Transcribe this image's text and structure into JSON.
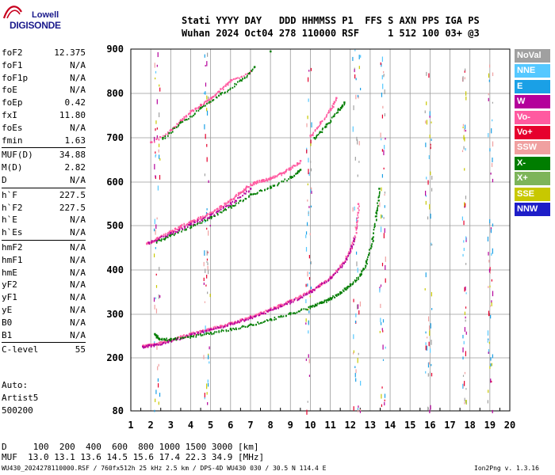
{
  "logo": {
    "line1": "Lowell",
    "line2": "DIGISONDE"
  },
  "header": {
    "row1": "Stati YYYY DAY   DDD HHMMSS P1  FFS S AXN PPS IGA PS",
    "row2": "Wuhan 2024 Oct04 278 110000 RSF     1 512 100 03+ @3"
  },
  "params": {
    "group1": [
      {
        "label": "foF2",
        "value": "12.375"
      },
      {
        "label": "foF1",
        "value": "N/A"
      },
      {
        "label": "foF1p",
        "value": "N/A"
      },
      {
        "label": "foE",
        "value": "N/A"
      },
      {
        "label": "foEp",
        "value": "0.42"
      },
      {
        "label": "fxI",
        "value": "11.80"
      },
      {
        "label": "foEs",
        "value": "N/A"
      },
      {
        "label": "fmin",
        "value": "1.63"
      }
    ],
    "group2": [
      {
        "label": "MUF(D)",
        "value": "34.88"
      },
      {
        "label": "M(D)",
        "value": "2.82"
      },
      {
        "label": "D",
        "value": "N/A"
      }
    ],
    "group3": [
      {
        "label": "h`F",
        "value": "227.5"
      },
      {
        "label": "h`F2",
        "value": "227.5"
      },
      {
        "label": "h`E",
        "value": "N/A"
      },
      {
        "label": "h`Es",
        "value": "N/A"
      }
    ],
    "group4": [
      {
        "label": "hmF2",
        "value": "N/A"
      },
      {
        "label": "hmF1",
        "value": "N/A"
      },
      {
        "label": "hmE",
        "value": "N/A"
      },
      {
        "label": "yF2",
        "value": "N/A"
      },
      {
        "label": "yF1",
        "value": "N/A"
      },
      {
        "label": "yE",
        "value": "N/A"
      },
      {
        "label": "B0",
        "value": "N/A"
      },
      {
        "label": "B1",
        "value": "N/A"
      }
    ],
    "group5": [
      {
        "label": "C-level",
        "value": "55"
      }
    ]
  },
  "autoscale": {
    "line1": "Auto:",
    "line2": "Artist5",
    "line3": "500200"
  },
  "legend": [
    {
      "label": "NoVal",
      "color": "#a0a0a0"
    },
    {
      "label": "NNE",
      "color": "#55c8ff"
    },
    {
      "label": "E",
      "color": "#1aa0e6"
    },
    {
      "label": "W",
      "color": "#b4009b"
    },
    {
      "label": "Vo-",
      "color": "#ff5aa0"
    },
    {
      "label": "Vo+",
      "color": "#e6002d"
    },
    {
      "label": "SSW",
      "color": "#f0a0a0"
    },
    {
      "label": "X-",
      "color": "#007d00"
    },
    {
      "label": "X+",
      "color": "#7db45a"
    },
    {
      "label": "SSE",
      "color": "#c8c800"
    },
    {
      "label": "NNW",
      "color": "#1e1ec8"
    }
  ],
  "footer": {
    "d_row": "D     100  200  400  600  800 1000 1500 3000 [km]",
    "muf_row": "MUF  13.0 13.1 13.6 14.5 15.6 17.4 22.3 34.9 [MHz]",
    "file_info": "WU430_2024278110000.RSF / 760fx512h 25 kHz 2.5 km / DPS-4D WU430 030 / 30.5 N 114.4 E",
    "version": "Ion2Png v. 1.3.16"
  },
  "chart_data": {
    "type": "scatter",
    "title": "",
    "xlabel": "",
    "ylabel": "",
    "xlim": [
      1,
      20
    ],
    "ylim": [
      80,
      900
    ],
    "x_ticks": [
      1,
      2,
      3,
      4,
      5,
      6,
      7,
      8,
      9,
      10,
      11,
      12,
      13,
      14,
      15,
      16,
      17,
      18,
      19,
      20
    ],
    "y_ticks": [
      80,
      200,
      300,
      400,
      500,
      600,
      700,
      800,
      900
    ],
    "grid": true,
    "series": [
      {
        "name": "Vo-",
        "color": "#ff5aa0",
        "points": [
          [
            1.6,
            228
          ],
          [
            2.0,
            231
          ],
          [
            2.5,
            236
          ],
          [
            3.0,
            243
          ],
          [
            3.5,
            250
          ],
          [
            4.0,
            256
          ],
          [
            4.5,
            262
          ],
          [
            5.0,
            268
          ],
          [
            5.5,
            274
          ],
          [
            6.0,
            281
          ],
          [
            6.5,
            288
          ],
          [
            7.0,
            296
          ],
          [
            7.5,
            304
          ],
          [
            8.0,
            313
          ],
          [
            8.5,
            322
          ],
          [
            9.0,
            332
          ],
          [
            9.5,
            342
          ],
          [
            10.0,
            354
          ],
          [
            10.5,
            368
          ],
          [
            11.0,
            385
          ],
          [
            11.5,
            410
          ],
          [
            12.0,
            445
          ],
          [
            12.3,
            495
          ],
          [
            12.4,
            550
          ]
        ]
      },
      {
        "name": "W",
        "color": "#b4009b",
        "points": [
          [
            1.6,
            226
          ],
          [
            2.2,
            231
          ],
          [
            3.0,
            241
          ],
          [
            4.0,
            254
          ],
          [
            5.0,
            266
          ],
          [
            6.0,
            279
          ],
          [
            7.0,
            294
          ],
          [
            8.0,
            311
          ],
          [
            9.0,
            330
          ],
          [
            10.0,
            352
          ],
          [
            11.0,
            383
          ],
          [
            11.8,
            425
          ],
          [
            12.2,
            470
          ]
        ]
      },
      {
        "name": "X-",
        "color": "#007d00",
        "points": [
          [
            2.2,
            255
          ],
          [
            2.4,
            244
          ],
          [
            3.0,
            244
          ],
          [
            4.0,
            250
          ],
          [
            5.0,
            258
          ],
          [
            6.0,
            267
          ],
          [
            7.0,
            277
          ],
          [
            8.0,
            289
          ],
          [
            9.0,
            303
          ],
          [
            10.0,
            318
          ],
          [
            10.5,
            327
          ],
          [
            11.0,
            337
          ],
          [
            11.5,
            350
          ],
          [
            12.0,
            368
          ],
          [
            12.5,
            390
          ],
          [
            12.8,
            420
          ],
          [
            13.1,
            470
          ],
          [
            13.3,
            530
          ],
          [
            13.45,
            585
          ]
        ]
      },
      {
        "name": "Vo- (2nd hop)",
        "color": "#ff5aa0",
        "points": [
          [
            1.8,
            460
          ],
          [
            2.3,
            472
          ],
          [
            3.0,
            488
          ],
          [
            3.5,
            500
          ],
          [
            4.0,
            510
          ],
          [
            4.5,
            520
          ],
          [
            5.0,
            530
          ],
          [
            5.5,
            545
          ],
          [
            6.0,
            560
          ],
          [
            6.4,
            575
          ],
          [
            6.8,
            590
          ],
          [
            7.2,
            600
          ],
          [
            7.6,
            605
          ],
          [
            8.0,
            610
          ],
          [
            8.5,
            620
          ],
          [
            9.0,
            632
          ],
          [
            9.5,
            648
          ]
        ]
      },
      {
        "name": "X- (2nd hop)",
        "color": "#007d00",
        "points": [
          [
            2.3,
            466
          ],
          [
            3.0,
            480
          ],
          [
            4.0,
            500
          ],
          [
            5.0,
            520
          ],
          [
            6.0,
            545
          ],
          [
            7.0,
            572
          ],
          [
            8.0,
            590
          ],
          [
            9.0,
            612
          ],
          [
            9.5,
            628
          ]
        ]
      },
      {
        "name": "W (2nd hop)",
        "color": "#b4009b",
        "points": [
          [
            1.9,
            462
          ],
          [
            3.0,
            484
          ],
          [
            4.0,
            505
          ],
          [
            5.0,
            525
          ],
          [
            6.0,
            552
          ],
          [
            7.0,
            585
          ]
        ]
      },
      {
        "name": "Vo- (3rd hop)",
        "color": "#ff5aa0",
        "points": [
          [
            2.0,
            690
          ],
          [
            3.0,
            718
          ],
          [
            3.5,
            740
          ],
          [
            4.0,
            760
          ],
          [
            4.5,
            775
          ],
          [
            5.0,
            790
          ],
          [
            5.5,
            810
          ],
          [
            6.0,
            830
          ],
          [
            7.0,
            850
          ],
          [
            10.0,
            705
          ],
          [
            10.5,
            735
          ],
          [
            11.0,
            765
          ],
          [
            11.3,
            790
          ]
        ]
      },
      {
        "name": "X- (3rd hop)",
        "color": "#007d00",
        "points": [
          [
            2.6,
            700
          ],
          [
            3.5,
            735
          ],
          [
            4.5,
            768
          ],
          [
            5.5,
            800
          ],
          [
            6.5,
            830
          ],
          [
            7.2,
            860
          ],
          [
            10.2,
            700
          ],
          [
            10.8,
            730
          ],
          [
            11.4,
            765
          ],
          [
            11.7,
            780
          ],
          [
            8.0,
            895
          ]
        ]
      }
    ]
  }
}
